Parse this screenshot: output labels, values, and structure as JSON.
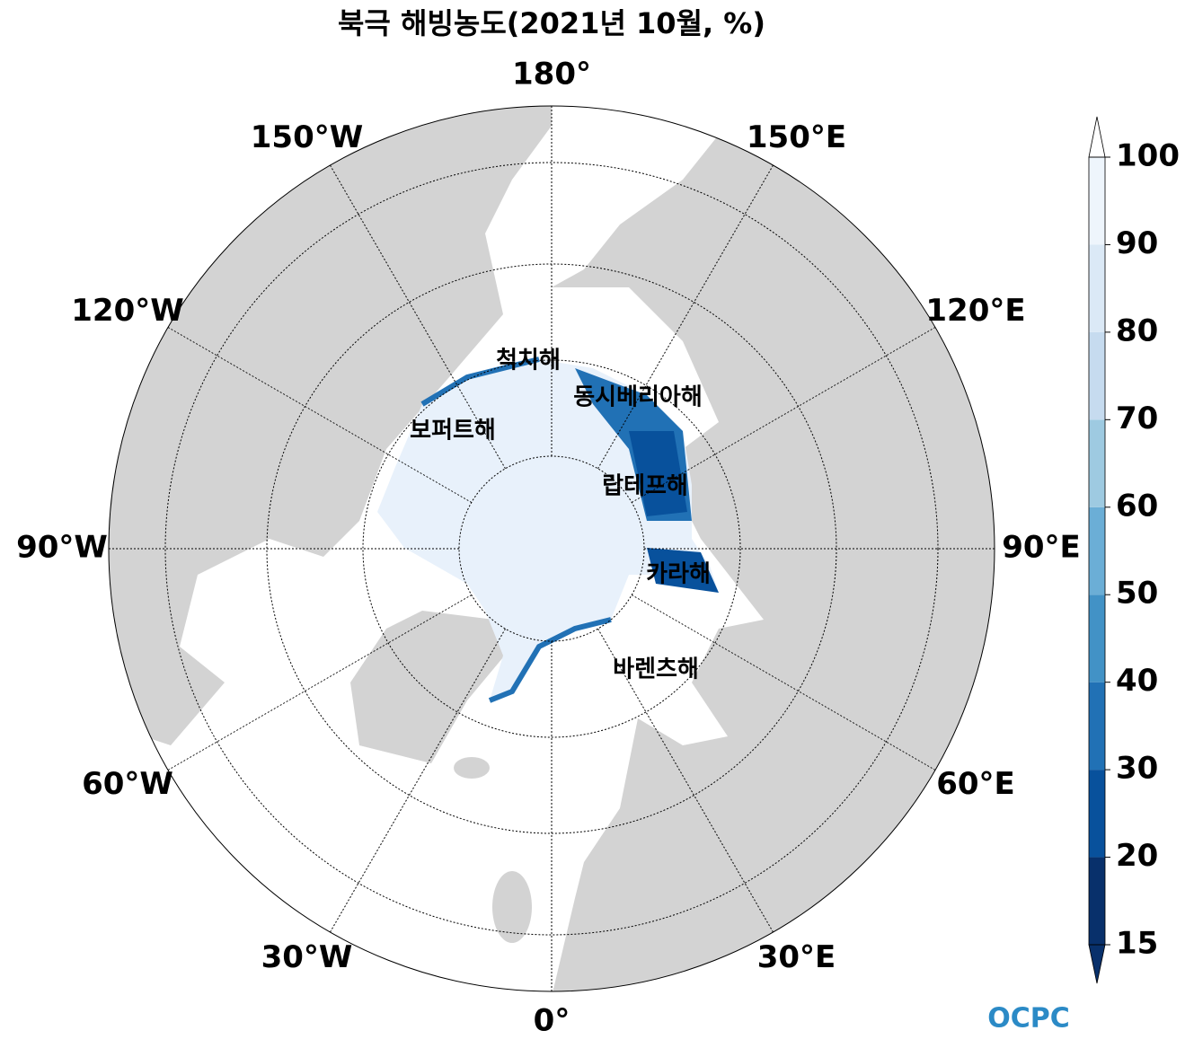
{
  "title": "북극 해빙농도(2021년 10월, %)",
  "longitude_labels": [
    "180°",
    "150°E",
    "120°E",
    "90°E",
    "60°E",
    "30°E",
    "0°",
    "30°W",
    "60°W",
    "90°W",
    "120°W",
    "150°W"
  ],
  "sea_labels": [
    "척치해",
    "동시베리아해",
    "보퍼트해",
    "랍테프해",
    "카라해",
    "바렌츠해"
  ],
  "colorbar": {
    "ticks": [
      15,
      20,
      30,
      40,
      50,
      60,
      70,
      80,
      90,
      100
    ],
    "colors": [
      "#08306b",
      "#08519c",
      "#2171b5",
      "#4292c6",
      "#6baed6",
      "#9ecae1",
      "#c6dbef",
      "#dbe9f6",
      "#eef5fc"
    ]
  },
  "logo": "OCPC"
}
